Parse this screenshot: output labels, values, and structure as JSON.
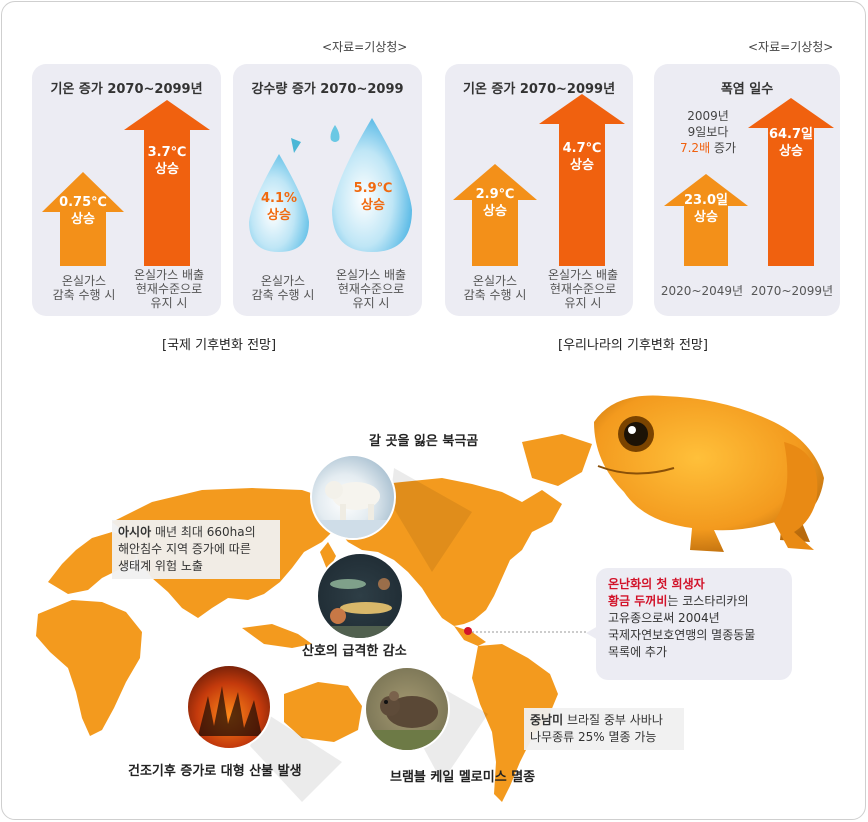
{
  "source_left": "<자료=기상청>",
  "source_right": "<자료=기상청>",
  "panels": {
    "temp_global": {
      "title": "기온 증가 2070~2099년",
      "low_value": "0.75℃\n상승",
      "high_value": "3.7℃\n상승",
      "low_caption": "온실가스\n감축 수행 시",
      "high_caption": "온실가스 배출\n현재수준으로\n유지 시"
    },
    "rain_global": {
      "title": "강수량 증가 2070~2099",
      "low_value": "4.1%\n상승",
      "high_value": "5.9℃\n상승",
      "low_caption": "온실가스\n감축 수행 시",
      "high_caption": "온실가스 배출\n현재수준으로\n유지 시"
    },
    "temp_korea": {
      "title": "기온 증가 2070~2099년",
      "low_value": "2.9℃\n상승",
      "high_value": "4.7℃\n상승",
      "low_caption": "온실가스\n감축 수행 시",
      "high_caption": "온실가스 배출\n현재수준으로\n유지 시"
    },
    "heat_days": {
      "title": "폭염 일수",
      "note_line1": "2009년",
      "note_line2": "9일보다",
      "note_highlight": "7.2배",
      "note_suffix": " 증가",
      "low_value": "23.0일\n상승",
      "high_value": "64.7일\n상승",
      "low_caption": "2020~2049년",
      "high_caption": "2070~2099년"
    }
  },
  "section_global": "[국제 기후변화 전망]",
  "section_korea": "[우리나라의 기후변화 전망]",
  "map": {
    "polar_bear_label": "갈 곳을 잃은 북극곰",
    "coral_label": "산호의 급격한 감소",
    "fire_label": "건조기후 증가로 대형 산불 발생",
    "rodent_label": "브램블 케일 멜로미스 멸종",
    "asia_box": {
      "bold": "아시아",
      "text1": " 매년 최대 660ha의",
      "text2": "해안침수 지역 증가에 따른",
      "text3": "생태계 위험 노출"
    },
    "south_america_box": {
      "bold": "중남미",
      "text1": " 브라질 중부 사바나",
      "text2": "나무종류 25% 멸종 가능"
    },
    "toad_box": {
      "line1": "온난화의 첫 희생자",
      "bold2": "황금 두꺼비",
      "text2": "는 코스타리카의",
      "text3": "고유종으로써 2004년",
      "text4": "국제자연보호연맹의 멸종동물",
      "text5": "목록에 추가"
    }
  },
  "colors": {
    "orange_low": "#f39019",
    "orange_high": "#f0610f",
    "panel_bg": "#ececf3",
    "map_orange": "#f39a1e",
    "highlight_red": "#d2132a"
  }
}
